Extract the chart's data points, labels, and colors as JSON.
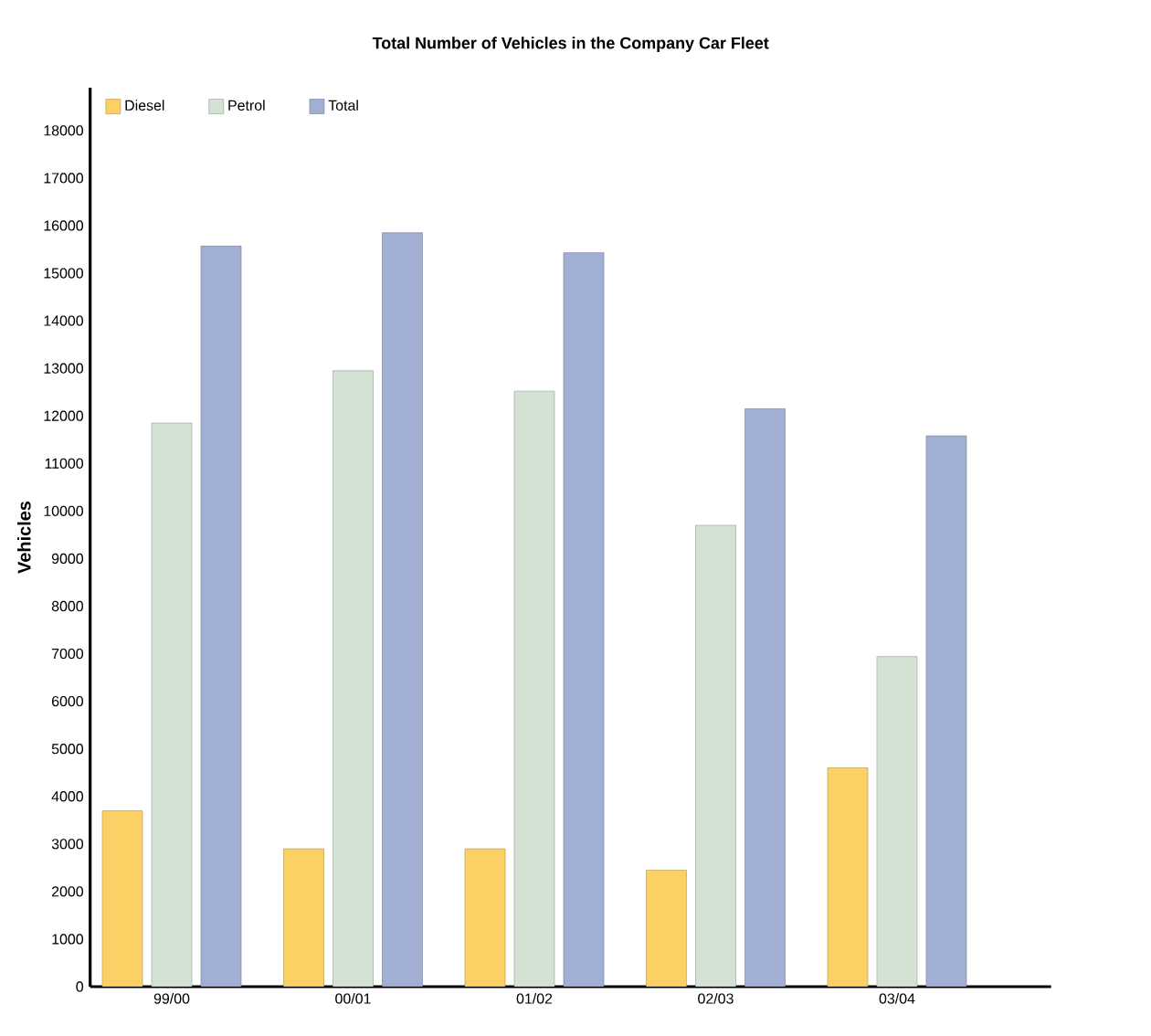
{
  "chart_data": {
    "type": "bar",
    "title": "Total Number of Vehicles in the Company Car Fleet",
    "ylabel": "Vehicles",
    "categories": [
      "99/00",
      "00/01",
      "01/02",
      "02/03",
      "03/04"
    ],
    "series": [
      {
        "name": "Diesel",
        "color": "#fbd166",
        "values": [
          3700,
          2900,
          2900,
          2450,
          4600
        ]
      },
      {
        "name": "Petrol",
        "color": "#d4e2d4",
        "values": [
          11850,
          12950,
          12520,
          9700,
          6940
        ]
      },
      {
        "name": "Total",
        "color": "#a2afd4",
        "values": [
          15570,
          15850,
          15430,
          12150,
          11580
        ]
      }
    ],
    "ylim": [
      0,
      18900
    ],
    "yticks": [
      0,
      1000,
      2000,
      3000,
      4000,
      5000,
      6000,
      7000,
      8000,
      9000,
      10000,
      11000,
      12000,
      13000,
      14000,
      15000,
      16000,
      17000,
      18000
    ],
    "grid": false,
    "legend": "top left"
  }
}
